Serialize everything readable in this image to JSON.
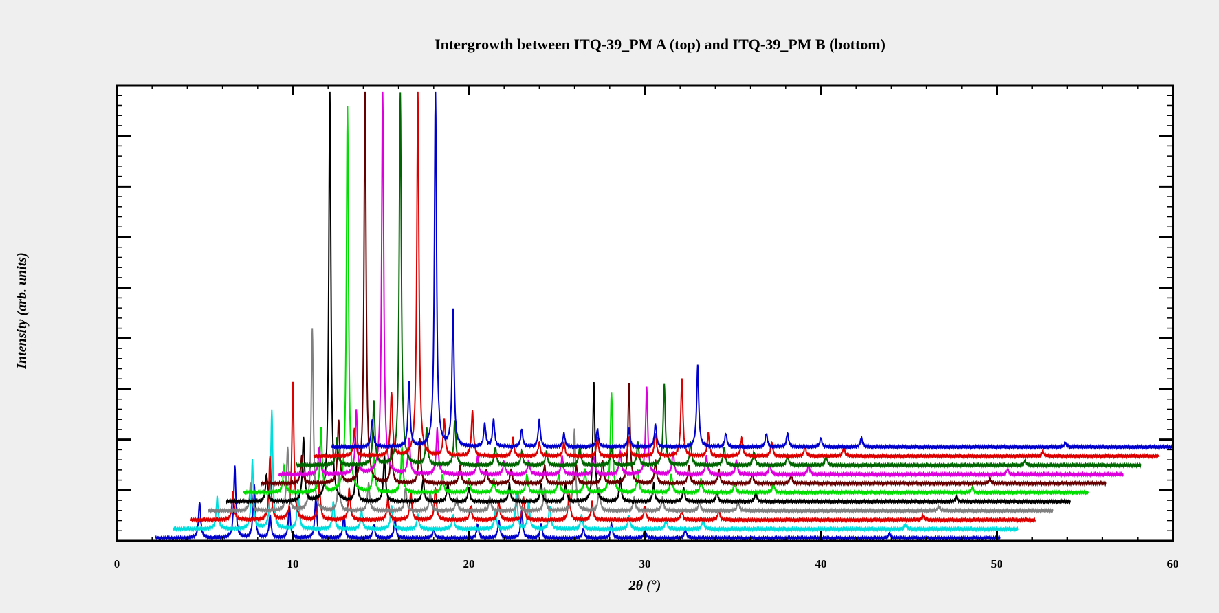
{
  "chart_data": {
    "type": "line",
    "title": "Intergrowth between ITQ-39_PM A (top) and ITQ-39_PM B (bottom)",
    "xlabel": "2θ (°)",
    "ylabel": "Intensity (arb. units)",
    "xlim": [
      0,
      60
    ],
    "ylim": [
      0,
      1
    ],
    "x_ticks": [
      0,
      10,
      20,
      30,
      40,
      50,
      60
    ],
    "y_tick_labels_shown": false,
    "grid": false,
    "legend": "none",
    "layout": "stacked patterns, each successive pattern offset up and to the right",
    "series": [
      {
        "color": "#0000cc",
        "x_range": [
          2.2,
          50.2
        ],
        "baseline": 0.006,
        "peaks": [
          [
            4.7,
            0.08
          ],
          [
            6.7,
            0.16
          ],
          [
            7.8,
            0.12
          ],
          [
            8.7,
            0.05
          ],
          [
            9.8,
            0.07
          ],
          [
            11.3,
            0.09
          ],
          [
            12.9,
            0.05
          ],
          [
            14.6,
            0.03
          ],
          [
            15.8,
            0.04
          ],
          [
            18.0,
            0.02
          ],
          [
            20.5,
            0.03
          ],
          [
            21.7,
            0.04
          ],
          [
            23.0,
            0.06
          ],
          [
            24.1,
            0.03
          ],
          [
            26.5,
            0.02
          ],
          [
            28.1,
            0.03
          ],
          [
            30.0,
            0.02
          ],
          [
            32.3,
            0.02
          ],
          [
            43.9,
            0.01
          ]
        ]
      },
      {
        "color": "#00dddd",
        "x_range": [
          3.2,
          51.2
        ],
        "baseline": 0.026,
        "peaks": [
          [
            5.7,
            0.07
          ],
          [
            7.7,
            0.15
          ],
          [
            8.8,
            0.26
          ],
          [
            10.3,
            0.08
          ],
          [
            12.3,
            0.06
          ],
          [
            13.9,
            0.04
          ],
          [
            15.6,
            0.05
          ],
          [
            17.1,
            0.03
          ],
          [
            19.1,
            0.03
          ],
          [
            21.5,
            0.04
          ],
          [
            22.7,
            0.08
          ],
          [
            23.4,
            0.06
          ],
          [
            24.6,
            0.05
          ],
          [
            26.4,
            0.03
          ],
          [
            29.1,
            0.03
          ],
          [
            31.2,
            0.02
          ],
          [
            33.3,
            0.02
          ],
          [
            44.8,
            0.01
          ]
        ]
      },
      {
        "color": "#dd0000",
        "x_range": [
          4.2,
          52.2
        ],
        "baseline": 0.046,
        "peaks": [
          [
            6.6,
            0.06
          ],
          [
            8.7,
            0.14
          ],
          [
            10.0,
            0.3
          ],
          [
            11.5,
            0.08
          ],
          [
            13.2,
            0.07
          ],
          [
            15.4,
            0.05
          ],
          [
            16.7,
            0.06
          ],
          [
            18.1,
            0.07
          ],
          [
            20.1,
            0.03
          ],
          [
            21.7,
            0.04
          ],
          [
            23.1,
            0.05
          ],
          [
            25.7,
            0.06
          ],
          [
            27.0,
            0.04
          ],
          [
            30.0,
            0.03
          ],
          [
            32.1,
            0.02
          ],
          [
            34.2,
            0.02
          ],
          [
            45.8,
            0.01
          ]
        ]
      },
      {
        "color": "#808080",
        "x_range": [
          5.2,
          53.2
        ],
        "baseline": 0.066,
        "peaks": [
          [
            7.6,
            0.06
          ],
          [
            9.7,
            0.14
          ],
          [
            11.1,
            0.4
          ],
          [
            12.6,
            0.08
          ],
          [
            14.3,
            0.06
          ],
          [
            16.4,
            0.05
          ],
          [
            17.8,
            0.04
          ],
          [
            19.3,
            0.03
          ],
          [
            21.2,
            0.03
          ],
          [
            22.8,
            0.04
          ],
          [
            24.3,
            0.05
          ],
          [
            26.0,
            0.18
          ],
          [
            27.4,
            0.05
          ],
          [
            29.4,
            0.03
          ],
          [
            31.0,
            0.03
          ],
          [
            33.1,
            0.02
          ],
          [
            35.3,
            0.02
          ],
          [
            46.7,
            0.01
          ]
        ]
      },
      {
        "color": "#000000",
        "x_range": [
          6.2,
          54.2
        ],
        "baseline": 0.086,
        "peaks": [
          [
            8.5,
            0.06
          ],
          [
            10.6,
            0.14
          ],
          [
            12.1,
            0.9
          ],
          [
            13.6,
            0.08
          ],
          [
            15.2,
            0.1
          ],
          [
            17.4,
            0.05
          ],
          [
            18.8,
            0.04
          ],
          [
            20.0,
            0.03
          ],
          [
            22.3,
            0.04
          ],
          [
            24.1,
            0.04
          ],
          [
            25.5,
            0.04
          ],
          [
            27.1,
            0.26
          ],
          [
            28.6,
            0.05
          ],
          [
            30.5,
            0.04
          ],
          [
            32.2,
            0.03
          ],
          [
            34.1,
            0.02
          ],
          [
            36.3,
            0.02
          ],
          [
            47.7,
            0.01
          ]
        ]
      },
      {
        "color": "#00dd00",
        "x_range": [
          7.2,
          55.2
        ],
        "baseline": 0.106,
        "peaks": [
          [
            9.5,
            0.06
          ],
          [
            11.6,
            0.14
          ],
          [
            13.1,
            0.85
          ],
          [
            14.6,
            0.08
          ],
          [
            16.2,
            0.1
          ],
          [
            18.5,
            0.04
          ],
          [
            20.0,
            0.03
          ],
          [
            21.4,
            0.03
          ],
          [
            23.3,
            0.04
          ],
          [
            25.1,
            0.04
          ],
          [
            26.6,
            0.05
          ],
          [
            28.1,
            0.22
          ],
          [
            29.6,
            0.05
          ],
          [
            31.5,
            0.04
          ],
          [
            33.2,
            0.03
          ],
          [
            35.1,
            0.02
          ],
          [
            37.3,
            0.02
          ],
          [
            48.6,
            0.01
          ]
        ]
      },
      {
        "color": "#660000",
        "x_range": [
          8.2,
          56.2
        ],
        "baseline": 0.126,
        "peaks": [
          [
            10.5,
            0.06
          ],
          [
            12.6,
            0.14
          ],
          [
            14.1,
            0.86
          ],
          [
            15.6,
            0.08
          ],
          [
            17.2,
            0.1
          ],
          [
            19.5,
            0.04
          ],
          [
            21.0,
            0.03
          ],
          [
            22.4,
            0.03
          ],
          [
            24.3,
            0.04
          ],
          [
            26.1,
            0.04
          ],
          [
            27.6,
            0.05
          ],
          [
            29.1,
            0.22
          ],
          [
            30.6,
            0.05
          ],
          [
            32.5,
            0.04
          ],
          [
            34.2,
            0.03
          ],
          [
            36.1,
            0.02
          ],
          [
            38.3,
            0.02
          ],
          [
            49.6,
            0.01
          ]
        ]
      },
      {
        "color": "#dd00dd",
        "x_range": [
          9.2,
          57.2
        ],
        "baseline": 0.146,
        "peaks": [
          [
            11.5,
            0.06
          ],
          [
            13.6,
            0.14
          ],
          [
            15.1,
            0.85
          ],
          [
            16.6,
            0.08
          ],
          [
            18.2,
            0.1
          ],
          [
            20.5,
            0.04
          ],
          [
            22.0,
            0.03
          ],
          [
            23.4,
            0.03
          ],
          [
            25.3,
            0.04
          ],
          [
            27.1,
            0.04
          ],
          [
            28.6,
            0.05
          ],
          [
            30.1,
            0.19
          ],
          [
            31.6,
            0.05
          ],
          [
            33.5,
            0.04
          ],
          [
            35.2,
            0.03
          ],
          [
            37.1,
            0.02
          ],
          [
            39.3,
            0.02
          ],
          [
            50.6,
            0.01
          ]
        ]
      },
      {
        "color": "#006600",
        "x_range": [
          10.2,
          58.2
        ],
        "baseline": 0.166,
        "peaks": [
          [
            12.5,
            0.06
          ],
          [
            14.6,
            0.14
          ],
          [
            16.1,
            0.82
          ],
          [
            17.6,
            0.08
          ],
          [
            19.2,
            0.1
          ],
          [
            21.5,
            0.04
          ],
          [
            23.0,
            0.03
          ],
          [
            24.4,
            0.03
          ],
          [
            26.3,
            0.04
          ],
          [
            28.1,
            0.04
          ],
          [
            29.6,
            0.05
          ],
          [
            31.1,
            0.18
          ],
          [
            32.6,
            0.05
          ],
          [
            34.5,
            0.04
          ],
          [
            36.2,
            0.03
          ],
          [
            38.1,
            0.02
          ],
          [
            40.3,
            0.02
          ],
          [
            51.6,
            0.01
          ]
        ]
      },
      {
        "color": "#dd0000",
        "x_range": [
          11.2,
          59.2
        ],
        "baseline": 0.186,
        "peaks": [
          [
            13.5,
            0.06
          ],
          [
            15.6,
            0.14
          ],
          [
            17.1,
            0.8
          ],
          [
            18.6,
            0.08
          ],
          [
            20.2,
            0.1
          ],
          [
            22.5,
            0.04
          ],
          [
            24.0,
            0.03
          ],
          [
            25.4,
            0.03
          ],
          [
            27.3,
            0.04
          ],
          [
            29.1,
            0.04
          ],
          [
            30.6,
            0.05
          ],
          [
            32.1,
            0.17
          ],
          [
            33.6,
            0.05
          ],
          [
            35.5,
            0.04
          ],
          [
            37.2,
            0.03
          ],
          [
            39.1,
            0.02
          ],
          [
            41.3,
            0.02
          ],
          [
            52.6,
            0.01
          ]
        ]
      },
      {
        "color": "#0000cc",
        "x_range": [
          12.2,
          60.2
        ],
        "baseline": 0.206,
        "peaks": [
          [
            14.5,
            0.06
          ],
          [
            16.6,
            0.14
          ],
          [
            18.1,
            0.78
          ],
          [
            19.1,
            0.3
          ],
          [
            20.9,
            0.05
          ],
          [
            21.4,
            0.06
          ],
          [
            23.0,
            0.04
          ],
          [
            24.0,
            0.06
          ],
          [
            25.4,
            0.03
          ],
          [
            27.3,
            0.04
          ],
          [
            29.1,
            0.04
          ],
          [
            30.6,
            0.05
          ],
          [
            33.0,
            0.18
          ],
          [
            34.6,
            0.03
          ],
          [
            36.9,
            0.03
          ],
          [
            38.1,
            0.03
          ],
          [
            40.0,
            0.02
          ],
          [
            42.3,
            0.02
          ],
          [
            53.9,
            0.01
          ]
        ]
      }
    ]
  }
}
